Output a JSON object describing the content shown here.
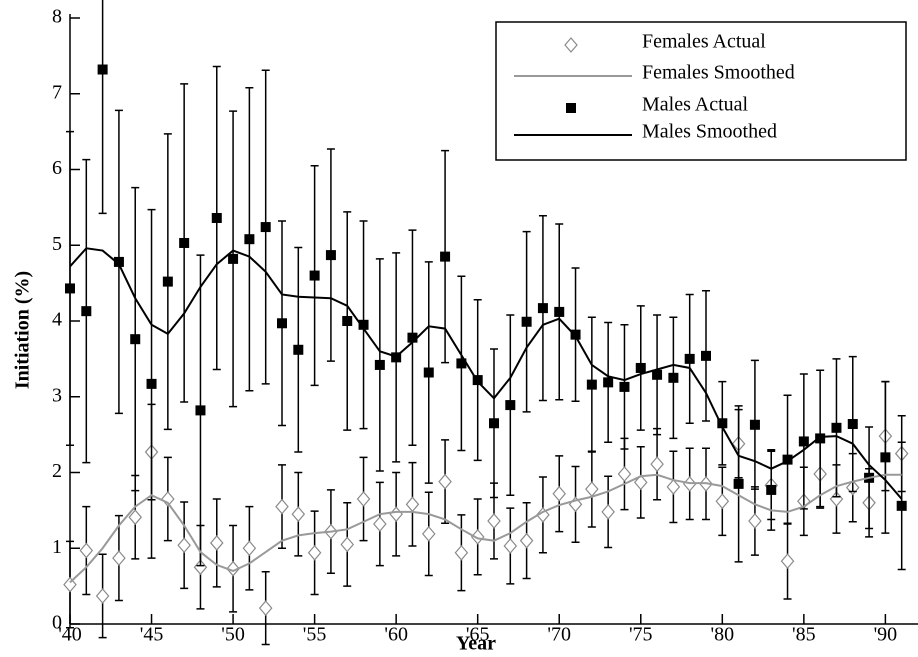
{
  "chart_data": {
    "type": "scatter",
    "xlabel": "Year",
    "ylabel": "Initiation (%)",
    "xlim": [
      1940,
      1992
    ],
    "ylim": [
      0,
      8
    ],
    "xticks": [
      {
        "value": 1940,
        "label": "'40"
      },
      {
        "value": 1945,
        "label": "'45"
      },
      {
        "value": 1950,
        "label": "'50"
      },
      {
        "value": 1955,
        "label": "'55"
      },
      {
        "value": 1960,
        "label": "'60"
      },
      {
        "value": 1965,
        "label": "'65"
      },
      {
        "value": 1970,
        "label": "'70"
      },
      {
        "value": 1975,
        "label": "'75"
      },
      {
        "value": 1980,
        "label": "'80"
      },
      {
        "value": 1985,
        "label": "'85"
      },
      {
        "value": 1990,
        "label": "'90"
      }
    ],
    "yticks": [
      0,
      1,
      2,
      3,
      4,
      5,
      6,
      7,
      8
    ],
    "legend": "top-right",
    "x": [
      1940,
      1941,
      1942,
      1943,
      1944,
      1945,
      1946,
      1947,
      1948,
      1949,
      1950,
      1951,
      1952,
      1953,
      1954,
      1955,
      1956,
      1957,
      1958,
      1959,
      1960,
      1961,
      1962,
      1963,
      1964,
      1965,
      1966,
      1967,
      1968,
      1969,
      1970,
      1971,
      1972,
      1973,
      1974,
      1975,
      1976,
      1977,
      1978,
      1979,
      1980,
      1981,
      1982,
      1983,
      1984,
      1985,
      1986,
      1987,
      1988,
      1989,
      1990,
      1991
    ],
    "series": [
      {
        "name": "Females Actual",
        "style": "marker",
        "marker": "diamond",
        "color": "#8a8a8a",
        "values": [
          0.52,
          0.97,
          0.37,
          0.87,
          1.41,
          2.27,
          1.65,
          1.04,
          0.75,
          1.07,
          0.73,
          1.0,
          0.21,
          1.55,
          1.45,
          0.94,
          1.22,
          1.05,
          1.65,
          1.32,
          1.45,
          1.58,
          1.19,
          1.88,
          0.94,
          1.15,
          1.36,
          1.03,
          1.1,
          1.44,
          1.72,
          1.58,
          1.78,
          1.48,
          1.98,
          1.87,
          2.11,
          1.81,
          1.85,
          1.85,
          1.62,
          2.38,
          1.36,
          1.83,
          0.83,
          1.62,
          1.98,
          1.65,
          1.8,
          1.6,
          2.48,
          2.25
        ],
        "errors": [
          0.57,
          0.58,
          0.55,
          0.56,
          0.55,
          0.63,
          0.55,
          0.57,
          0.55,
          0.58,
          0.57,
          0.55,
          0.48,
          0.55,
          0.55,
          0.55,
          0.55,
          0.55,
          0.55,
          0.55,
          0.55,
          0.55,
          0.55,
          0.55,
          0.5,
          0.5,
          0.5,
          0.5,
          0.5,
          0.5,
          0.5,
          0.5,
          0.5,
          0.47,
          0.47,
          0.47,
          0.47,
          0.47,
          0.47,
          0.47,
          0.45,
          0.45,
          0.45,
          0.45,
          0.5,
          0.45,
          0.45,
          0.45,
          0.45,
          0.45,
          0.72,
          0.5
        ]
      },
      {
        "name": "Females Smoothed",
        "style": "line",
        "color": "#999999",
        "values": [
          0.55,
          0.75,
          1.0,
          1.3,
          1.55,
          1.7,
          1.6,
          1.3,
          0.95,
          0.78,
          0.7,
          0.8,
          0.95,
          1.1,
          1.17,
          1.2,
          1.22,
          1.25,
          1.35,
          1.45,
          1.48,
          1.48,
          1.45,
          1.38,
          1.25,
          1.13,
          1.1,
          1.2,
          1.35,
          1.48,
          1.57,
          1.63,
          1.68,
          1.75,
          1.85,
          1.95,
          1.97,
          1.9,
          1.86,
          1.86,
          1.82,
          1.7,
          1.58,
          1.5,
          1.48,
          1.55,
          1.7,
          1.82,
          1.88,
          1.93,
          1.97,
          1.97
        ]
      },
      {
        "name": "Males Actual",
        "style": "marker",
        "marker": "square",
        "color": "#000000",
        "values": [
          4.43,
          4.13,
          7.32,
          4.78,
          3.76,
          3.17,
          4.52,
          5.03,
          2.82,
          5.36,
          4.82,
          5.08,
          5.24,
          3.97,
          3.62,
          4.6,
          4.87,
          4.0,
          3.95,
          3.42,
          3.52,
          3.78,
          3.32,
          4.85,
          3.44,
          3.22,
          2.65,
          2.89,
          3.99,
          4.17,
          4.12,
          3.82,
          3.16,
          3.19,
          3.13,
          3.38,
          3.29,
          3.25,
          3.5,
          3.54,
          2.65,
          1.85,
          2.63,
          1.77,
          2.17,
          2.41,
          2.45,
          2.59,
          2.64,
          1.93,
          2.2,
          1.56
        ],
        "errors": [
          2.07,
          2.0,
          1.9,
          2.0,
          2.0,
          2.3,
          1.95,
          2.1,
          2.05,
          2.0,
          1.95,
          2.0,
          2.07,
          1.35,
          1.35,
          1.45,
          1.4,
          1.44,
          1.37,
          1.4,
          1.38,
          1.42,
          1.46,
          1.4,
          1.15,
          1.06,
          0.98,
          1.19,
          1.19,
          1.22,
          1.16,
          0.88,
          0.89,
          0.79,
          0.82,
          0.82,
          0.79,
          0.8,
          0.85,
          0.86,
          0.55,
          1.03,
          0.85,
          0.53,
          0.85,
          0.89,
          0.9,
          0.91,
          0.89,
          0.67,
          1.0,
          0.84
        ]
      },
      {
        "name": "Males Smoothed",
        "style": "line",
        "color": "#000000",
        "values": [
          4.72,
          4.96,
          4.93,
          4.75,
          4.3,
          3.95,
          3.83,
          4.1,
          4.45,
          4.75,
          4.93,
          4.85,
          4.65,
          4.35,
          4.32,
          4.31,
          4.3,
          4.2,
          3.9,
          3.6,
          3.53,
          3.72,
          3.93,
          3.9,
          3.55,
          3.2,
          2.98,
          3.25,
          3.65,
          3.95,
          4.03,
          3.8,
          3.42,
          3.27,
          3.22,
          3.3,
          3.36,
          3.42,
          3.38,
          3.05,
          2.6,
          2.22,
          2.15,
          2.05,
          2.15,
          2.3,
          2.47,
          2.48,
          2.38,
          2.1,
          1.9,
          1.65
        ]
      }
    ]
  }
}
